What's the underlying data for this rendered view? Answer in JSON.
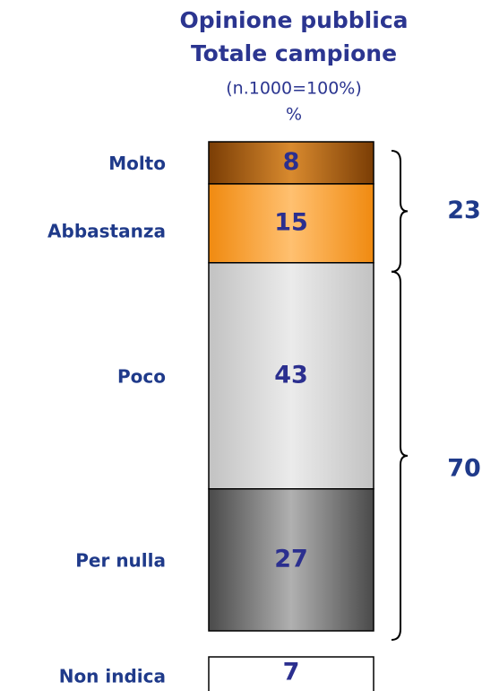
{
  "chart_data": {
    "type": "stacked_bar",
    "title": "Opinione pubblica",
    "subtitle": "Totale campione",
    "sample_note": "(n.1000=100%)",
    "unit": "%",
    "series": [
      {
        "name": "Molto",
        "color": "#9a5410",
        "values": [
          8
        ]
      },
      {
        "name": "Abbastanza",
        "color": "#f7931e",
        "values": [
          15
        ]
      },
      {
        "name": "Poco",
        "color": "#d4d4d4",
        "values": [
          43
        ]
      },
      {
        "name": "Per nulla",
        "color": "#7a7a7a",
        "values": [
          27
        ]
      }
    ],
    "not_stated": {
      "name": "Non indica",
      "value": 7
    },
    "brackets": [
      {
        "value": 23
      },
      {
        "value": 70
      }
    ]
  }
}
